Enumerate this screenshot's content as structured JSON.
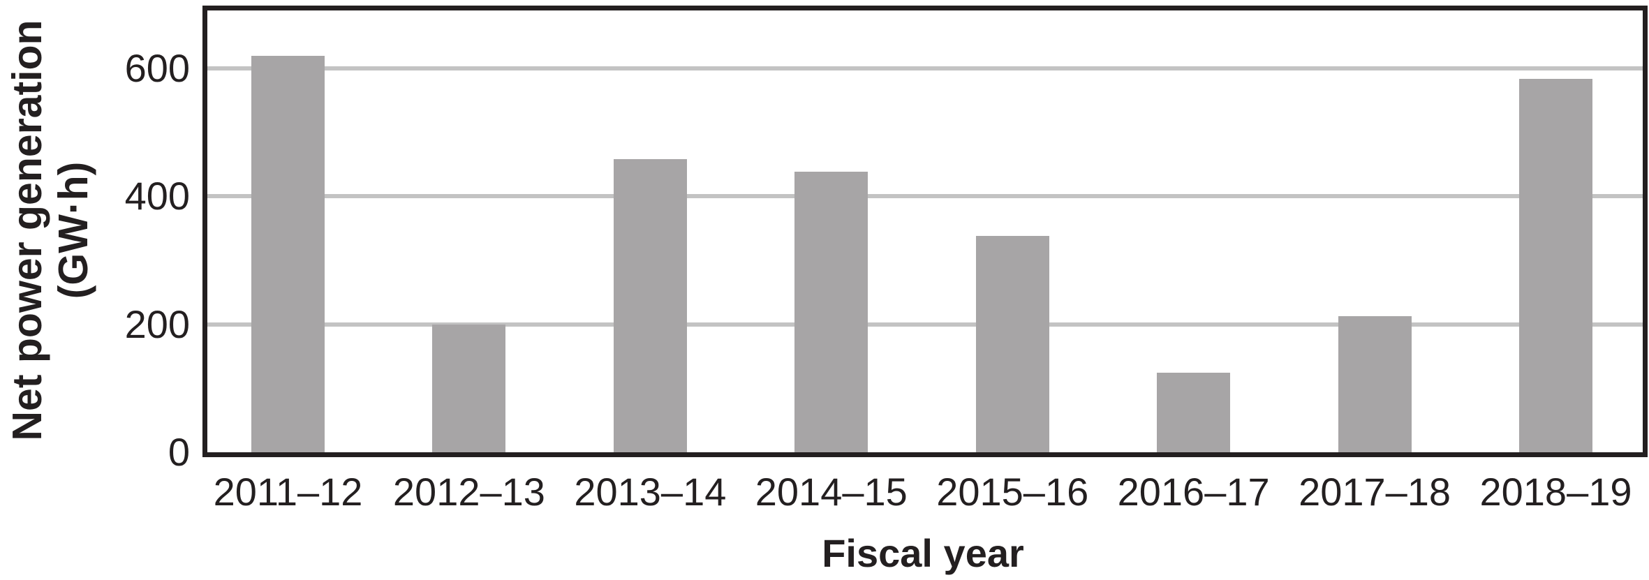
{
  "chart_data": {
    "type": "bar",
    "title": "",
    "categories": [
      "2011–12",
      "2012–13",
      "2013–14",
      "2014–15",
      "2015–16",
      "2016–17",
      "2017–18",
      "2018–19"
    ],
    "values": [
      620,
      200,
      458,
      439,
      338,
      124,
      213,
      584
    ],
    "xlabel": "Fiscal year",
    "ylabel": "Net power generation (GW·h)",
    "ylabel_line1": "Net power generation",
    "ylabel_line2": "(GW·h)",
    "yticks": [
      0,
      200,
      400,
      600
    ],
    "ylim": [
      0,
      690
    ],
    "grid": "horizontal-only",
    "legend": "none",
    "bar_color": "#a7a5a6",
    "gridline_color": "#c3c3c3",
    "frame_color": "#231f20",
    "text_color": "#231f20"
  }
}
